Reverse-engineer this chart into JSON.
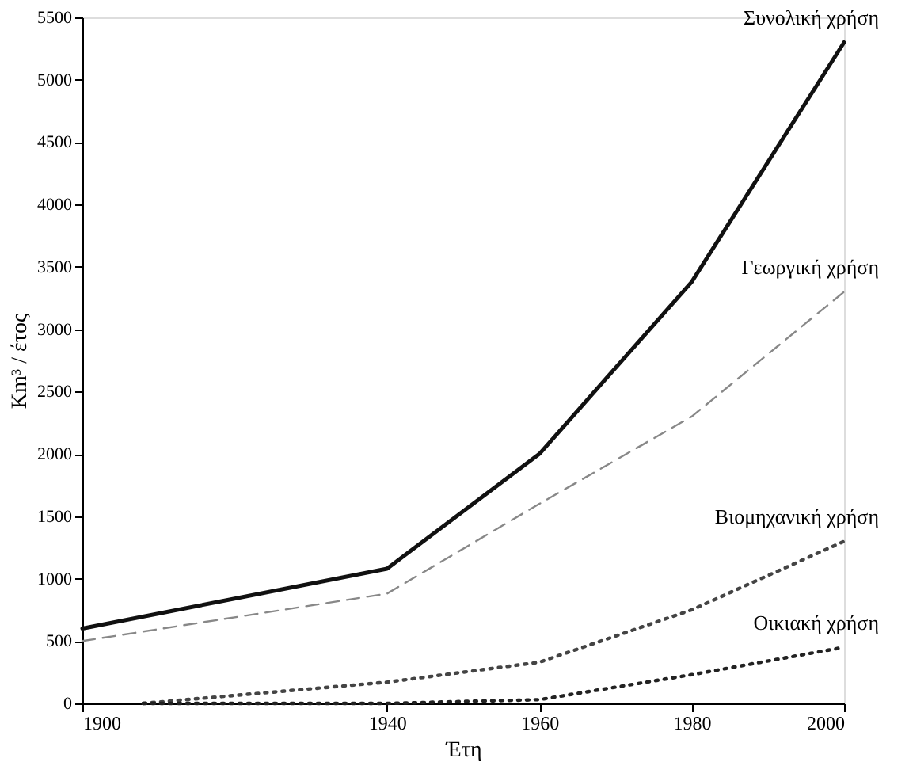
{
  "chart_data": {
    "type": "line",
    "xlabel": "Έτη",
    "ylabel": "Km³ / έτος",
    "xlim": [
      1900,
      2000
    ],
    "xticks": [
      1900,
      1940,
      1960,
      1980,
      2000
    ],
    "ylim": [
      0,
      5500
    ],
    "yticks": [
      0,
      500,
      1000,
      1500,
      2000,
      2500,
      3000,
      3500,
      4000,
      4500,
      5000,
      5500
    ],
    "grid": false,
    "marker": "none",
    "series": [
      {
        "name": "Συνολική χρήση",
        "color": "#111111",
        "line_style": "solid",
        "x": [
          1900,
          1940,
          1960,
          1980,
          2000
        ],
        "values": [
          600,
          1080,
          2000,
          3380,
          5300
        ]
      },
      {
        "name": "Γεωργική χρήση",
        "color": "#888888",
        "line_style": "dashed",
        "x": [
          1900,
          1940,
          1960,
          1980,
          2000
        ],
        "values": [
          500,
          880,
          1600,
          2300,
          3300
        ]
      },
      {
        "name": "Βιομηχανική χρήση",
        "color": "#444444",
        "line_style": "dotted",
        "x": [
          1908,
          1940,
          1960,
          1980,
          2000
        ],
        "values": [
          0,
          170,
          330,
          750,
          1300
        ]
      },
      {
        "name": "Οικιακή χρήση",
        "color": "#222222",
        "line_style": "dotted",
        "x": [
          1908,
          1940,
          1960,
          1980,
          2000
        ],
        "values": [
          0,
          0,
          30,
          230,
          450
        ]
      }
    ]
  }
}
